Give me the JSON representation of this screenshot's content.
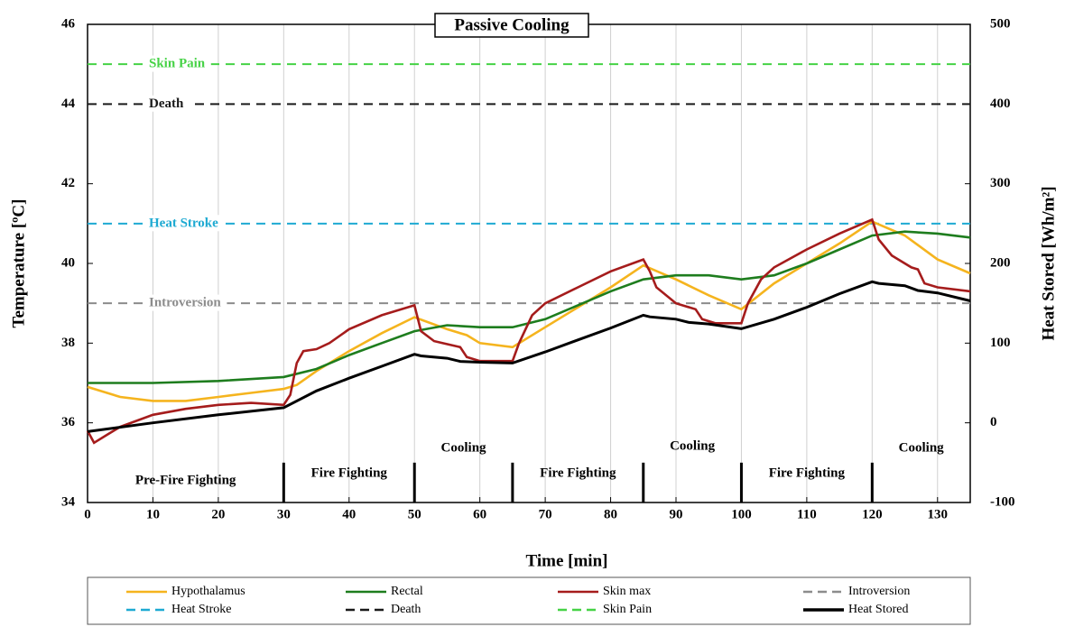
{
  "chart_data": {
    "type": "line",
    "title": "Passive Cooling",
    "x_label": "Time [min]",
    "y_label": "Temperature  [ºC]",
    "y2_label": "Heat Stored [Wh/m²]",
    "xlim": [
      0,
      135
    ],
    "xticks": [
      0,
      10,
      20,
      30,
      40,
      50,
      60,
      70,
      80,
      90,
      100,
      110,
      120,
      130
    ],
    "ylim": [
      34,
      46
    ],
    "yticks": [
      34,
      36,
      38,
      40,
      42,
      44,
      46
    ],
    "y2lim": [
      -100,
      500
    ],
    "y2ticks": [
      -100,
      0,
      100,
      200,
      300,
      400,
      500
    ],
    "grid": true,
    "series": [
      {
        "name": "Hypothalamus",
        "color": "#f5b41e",
        "x": [
          0,
          5,
          10,
          15,
          20,
          25,
          30,
          32,
          35,
          40,
          45,
          50,
          55,
          58,
          60,
          65,
          70,
          75,
          80,
          85,
          90,
          95,
          100,
          105,
          110,
          115,
          120,
          125,
          130,
          135
        ],
        "values": [
          36.9,
          36.65,
          36.55,
          36.55,
          36.65,
          36.75,
          36.85,
          36.95,
          37.3,
          37.8,
          38.25,
          38.65,
          38.35,
          38.2,
          38.0,
          37.9,
          38.4,
          38.9,
          39.4,
          39.95,
          39.6,
          39.2,
          38.85,
          39.5,
          40.0,
          40.5,
          41.05,
          40.7,
          40.1,
          39.75
        ]
      },
      {
        "name": "Rectal",
        "color": "#1e7d1e",
        "x": [
          0,
          10,
          20,
          30,
          35,
          40,
          45,
          50,
          55,
          60,
          65,
          70,
          75,
          80,
          85,
          90,
          95,
          100,
          105,
          110,
          115,
          120,
          125,
          130,
          135
        ],
        "values": [
          37.0,
          37.0,
          37.05,
          37.15,
          37.35,
          37.7,
          38.0,
          38.3,
          38.45,
          38.4,
          38.4,
          38.6,
          38.95,
          39.3,
          39.6,
          39.7,
          39.7,
          39.6,
          39.7,
          40.0,
          40.35,
          40.7,
          40.8,
          40.75,
          40.65
        ]
      },
      {
        "name": "Skin max",
        "color": "#a51c1c",
        "x": [
          0,
          1,
          3,
          5,
          10,
          15,
          20,
          25,
          30,
          31,
          32,
          33,
          35,
          37,
          40,
          45,
          50,
          51,
          53,
          57,
          58,
          60,
          65,
          66,
          68,
          70,
          75,
          80,
          85,
          86,
          87,
          90,
          93,
          94,
          96,
          100,
          101,
          103,
          105,
          110,
          115,
          120,
          121,
          123,
          126,
          127,
          128,
          130,
          135
        ],
        "values": [
          35.8,
          35.5,
          35.7,
          35.9,
          36.2,
          36.35,
          36.45,
          36.5,
          36.45,
          36.7,
          37.5,
          37.8,
          37.85,
          38.0,
          38.35,
          38.7,
          38.95,
          38.3,
          38.05,
          37.9,
          37.65,
          37.55,
          37.55,
          38.0,
          38.7,
          39.0,
          39.4,
          39.8,
          40.1,
          39.8,
          39.4,
          39.0,
          38.85,
          38.6,
          38.5,
          38.5,
          39.0,
          39.6,
          39.9,
          40.35,
          40.75,
          41.1,
          40.6,
          40.2,
          39.9,
          39.85,
          39.5,
          39.4,
          39.3
        ]
      },
      {
        "name": "Heat Stored",
        "color": "#000000",
        "axis": "y2",
        "x": [
          0,
          10,
          20,
          30,
          35,
          40,
          45,
          50,
          51,
          55,
          57,
          60,
          65,
          70,
          75,
          80,
          85,
          86,
          90,
          92,
          95,
          100,
          105,
          110,
          115,
          120,
          121,
          125,
          127,
          130,
          135
        ],
        "values": [
          -11,
          0,
          10,
          19,
          40,
          56,
          71,
          86,
          84,
          81,
          77,
          76,
          75,
          89,
          104,
          119,
          135,
          133,
          130,
          126,
          124,
          118,
          130,
          145,
          162,
          177,
          175,
          172,
          166,
          163,
          153
        ]
      }
    ],
    "reference_lines": [
      {
        "name": "Introversion",
        "value": 39,
        "color": "#8c8c8c"
      },
      {
        "name": "Heat Stroke",
        "value": 41,
        "color": "#1eaad2"
      },
      {
        "name": "Death",
        "value": 44,
        "color": "#1a1a1a"
      },
      {
        "name": "Skin Pain",
        "value": 45,
        "color": "#46d246"
      }
    ],
    "phase_boundaries": [
      30,
      50,
      65,
      85,
      100,
      120
    ],
    "phases": [
      "Pre-Fire Fighting",
      "Fire Fighting",
      "Cooling",
      "Fire Fighting",
      "Cooling",
      "Fire Fighting",
      "Cooling"
    ]
  }
}
